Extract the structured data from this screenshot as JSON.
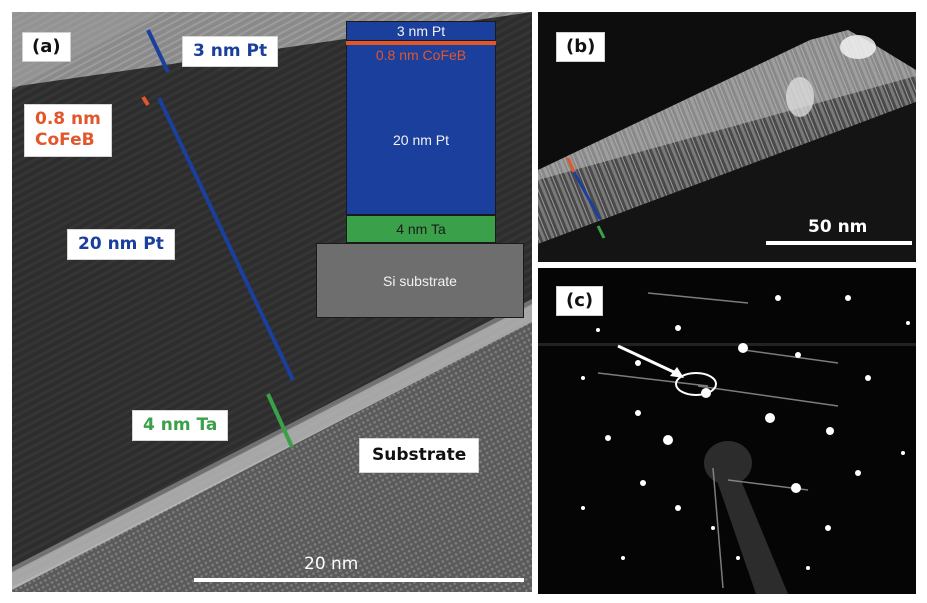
{
  "panels": {
    "a": {
      "tag": "(a)",
      "labels": {
        "pt_top": "3 nm Pt",
        "cofeb_line1": "0.8 nm",
        "cofeb_line2": "CoFeB",
        "pt_main": "20 nm Pt",
        "ta": "4 nm Ta",
        "substrate": "Substrate"
      },
      "stack": {
        "pt_top": "3 nm Pt",
        "cofeb": "0.8 nm CoFeB",
        "pt_main": "20 nm Pt",
        "ta": "4 nm Ta",
        "si": "Si substrate"
      },
      "scale_bar": "20 nm"
    },
    "b": {
      "tag": "(b)",
      "scale_bar": "50 nm"
    },
    "c": {
      "tag": "(c)"
    }
  },
  "colors": {
    "pt": "#1a3f9c",
    "cofeb": "#e2562b",
    "ta": "#3aa14a",
    "si": "#6e6e6e"
  }
}
